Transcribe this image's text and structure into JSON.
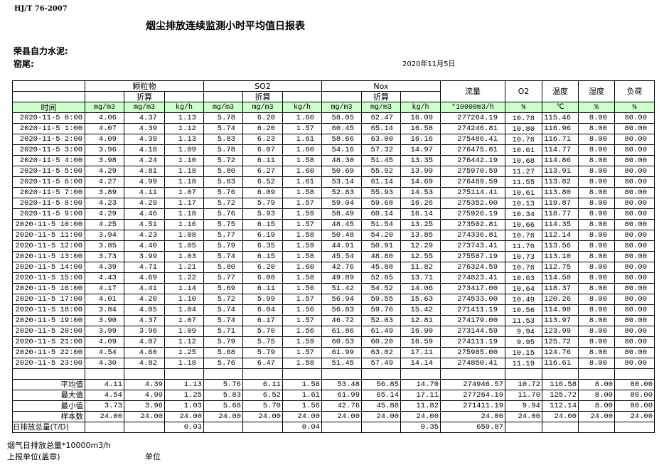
{
  "header": {
    "standard": "HJ/T  76-2007",
    "title": "烟尘排放连续监测小时平均值日报表",
    "company": "荣县自力水泥:",
    "kiln": "窑尾:",
    "date": "2020年11月5日"
  },
  "table": {
    "groups": {
      "particulate": "颗粒物",
      "so2": "SO2",
      "nox": "Nox",
      "flow": "流量",
      "o2": "O2",
      "temp": "温度",
      "humidity": "湿度",
      "load": "负荷"
    },
    "converted": "折算",
    "units": [
      "时间",
      "mg/m3",
      "mg/m3",
      "kg/h",
      "mg/m3",
      "mg/m3",
      "kg/h",
      "mg/m3",
      "mg/m3",
      "kg/h",
      "*10000m3/h",
      "%",
      "℃",
      "%",
      "%"
    ],
    "rows": [
      [
        "2020-11-5 0:00",
        "4.06",
        "4.37",
        "1.13",
        "5.78",
        "6.20",
        "1.60",
        "58.05",
        "62.47",
        "16.09",
        "277264.19",
        "10.78",
        "115.46",
        "8.00",
        "80.00"
      ],
      [
        "2020-11-5 1:00",
        "4.07",
        "4.39",
        "1.12",
        "5.74",
        "6.20",
        "1.57",
        "60.45",
        "65.14",
        "16.58",
        "274246.81",
        "10.80",
        "116.96",
        "8.00",
        "80.00"
      ],
      [
        "2020-11-5 2:00",
        "4.09",
        "4.39",
        "1.13",
        "5.83",
        "6.23",
        "1.61",
        "58.66",
        "63.00",
        "16.16",
        "275486.41",
        "10.76",
        "116.71",
        "8.00",
        "80.00"
      ],
      [
        "2020-11-5 3:00",
        "3.96",
        "4.18",
        "1.09",
        "5.78",
        "6.07",
        "1.60",
        "54.16",
        "57.32",
        "14.97",
        "276475.81",
        "10.61",
        "114.77",
        "8.00",
        "80.00"
      ],
      [
        "2020-11-5 4:00",
        "3.98",
        "4.24",
        "1.10",
        "5.72",
        "6.11",
        "1.58",
        "48.30",
        "51.45",
        "13.35",
        "276442.19",
        "10.68",
        "114.86",
        "8.00",
        "80.00"
      ],
      [
        "2020-11-5 5:00",
        "4.29",
        "4.81",
        "1.18",
        "5.80",
        "6.27",
        "1.60",
        "50.69",
        "55.92",
        "13.99",
        "275970.59",
        "11.27",
        "113.91",
        "8.00",
        "80.00"
      ],
      [
        "2020-11-5 6:00",
        "4.27",
        "4.99",
        "1.18",
        "5.83",
        "6.52",
        "1.61",
        "53.14",
        "61.14",
        "14.69",
        "276489.59",
        "11.55",
        "113.82",
        "8.00",
        "80.00"
      ],
      [
        "2020-11-5 7:00",
        "3.89",
        "4.11",
        "1.07",
        "5.76",
        "6.09",
        "1.58",
        "52.83",
        "55.93",
        "14.53",
        "275114.41",
        "10.61",
        "113.80",
        "8.00",
        "80.00"
      ],
      [
        "2020-11-5 8:00",
        "4.23",
        "4.29",
        "1.17",
        "5.72",
        "5.79",
        "1.57",
        "59.04",
        "59.68",
        "16.26",
        "275352.00",
        "10.13",
        "119.87",
        "8.00",
        "80.00"
      ],
      [
        "2020-11-5 9:00",
        "4.29",
        "4.46",
        "1.18",
        "5.76",
        "5.93",
        "1.59",
        "58.49",
        "60.14",
        "16.14",
        "275926.19",
        "10.34",
        "118.77",
        "8.00",
        "80.00"
      ],
      [
        "2020-11-5 10:00",
        "4.25",
        "4.51",
        "1.16",
        "5.75",
        "6.15",
        "1.57",
        "48.45",
        "51.54",
        "13.25",
        "273502.81",
        "10.66",
        "114.35",
        "8.00",
        "80.00"
      ],
      [
        "2020-11-5 11:00",
        "3.94",
        "4.23",
        "1.08",
        "5.77",
        "6.19",
        "1.58",
        "50.48",
        "54.20",
        "13.85",
        "274336.81",
        "10.76",
        "112.14",
        "8.00",
        "80.00"
      ],
      [
        "2020-11-5 12:00",
        "3.85",
        "4.40",
        "1.05",
        "5.79",
        "6.35",
        "1.59",
        "44.91",
        "50.91",
        "12.29",
        "273743.41",
        "11.70",
        "113.56",
        "8.00",
        "80.00"
      ],
      [
        "2020-11-5 13:00",
        "3.73",
        "3.99",
        "1.03",
        "5.74",
        "6.15",
        "1.58",
        "45.54",
        "48.80",
        "12.55",
        "275587.19",
        "10.73",
        "113.10",
        "8.00",
        "80.00"
      ],
      [
        "2020-11-5 14:00",
        "4.39",
        "4.71",
        "1.21",
        "5.80",
        "6.20",
        "1.60",
        "42.76",
        "45.88",
        "11.82",
        "276324.59",
        "10.76",
        "112.75",
        "8.00",
        "80.00"
      ],
      [
        "2020-11-5 15:00",
        "4.43",
        "4.69",
        "1.22",
        "5.77",
        "6.08",
        "1.58",
        "49.89",
        "52.85",
        "13.71",
        "274823.41",
        "10.63",
        "114.50",
        "8.00",
        "80.00"
      ],
      [
        "2020-11-5 16:00",
        "4.17",
        "4.41",
        "1.14",
        "5.69",
        "6.11",
        "1.56",
        "51.42",
        "54.52",
        "14.06",
        "273417.00",
        "10.64",
        "118.37",
        "8.00",
        "80.00"
      ],
      [
        "2020-11-5 17:00",
        "4.01",
        "4.20",
        "1.10",
        "5.72",
        "5.99",
        "1.57",
        "56.94",
        "59.55",
        "15.63",
        "274533.00",
        "10.49",
        "120.26",
        "8.00",
        "80.00"
      ],
      [
        "2020-11-5 18:00",
        "3.84",
        "4.05",
        "1.04",
        "5.74",
        "6.04",
        "1.56",
        "56.83",
        "59.76",
        "15.42",
        "271411.19",
        "10.56",
        "114.98",
        "8.00",
        "80.00"
      ],
      [
        "2020-11-5 19:00",
        "3.90",
        "4.37",
        "1.07",
        "5.74",
        "6.17",
        "1.57",
        "46.72",
        "52.03",
        "12.81",
        "274179.00",
        "11.53",
        "113.97",
        "8.00",
        "80.00"
      ],
      [
        "2020-11-5 20:00",
        "3.99",
        "3.96",
        "1.09",
        "5.71",
        "5.70",
        "1.56",
        "61.86",
        "61.49",
        "16.90",
        "273144.59",
        "9.94",
        "123.99",
        "8.00",
        "80.00"
      ],
      [
        "2020-11-5 21:00",
        "4.09",
        "4.07",
        "1.12",
        "5.79",
        "5.75",
        "1.59",
        "60.53",
        "60.20",
        "16.59",
        "274111.19",
        "9.95",
        "125.72",
        "8.00",
        "80.00"
      ],
      [
        "2020-11-5 22:00",
        "4.54",
        "4.60",
        "1.25",
        "5.68",
        "5.79",
        "1.57",
        "61.99",
        "63.02",
        "17.11",
        "275985.00",
        "10.15",
        "124.76",
        "8.00",
        "80.00"
      ],
      [
        "2020-11-5 23:00",
        "4.30",
        "4.82",
        "1.18",
        "5.76",
        "6.47",
        "1.58",
        "51.45",
        "57.49",
        "14.14",
        "274850.41",
        "11.19",
        "116.61",
        "8.00",
        "80.00"
      ]
    ],
    "summary": [
      [
        "平均值",
        "4.11",
        "4.39",
        "1.13",
        "5.76",
        "6.11",
        "1.58",
        "53.48",
        "56.85",
        "14.70",
        "274946.57",
        "10.72",
        "116.58",
        "8.00",
        "80.00"
      ],
      [
        "最大值",
        "4.54",
        "4.99",
        "1.25",
        "5.83",
        "6.52",
        "1.61",
        "61.99",
        "65.14",
        "17.11",
        "277264.19",
        "11.70",
        "125.72",
        "8.00",
        "80.00"
      ],
      [
        "最小值",
        "3.73",
        "3.96",
        "1.03",
        "5.68",
        "5.70",
        "1.56",
        "42.76",
        "45.88",
        "11.82",
        "271411.19",
        "9.94",
        "112.14",
        "8.00",
        "80.00"
      ],
      [
        "样本数",
        "24.00",
        "24.00",
        "24.00",
        "24.00",
        "24.00",
        "24.00",
        "24.00",
        "24.00",
        "24.00",
        "24.00",
        "24.00",
        "24.00",
        "24.00",
        "24.00"
      ],
      [
        "日排放总量(T/D)",
        "",
        "",
        "0.03",
        "",
        "",
        "0.04",
        "",
        "",
        "0.35",
        "659.87",
        "",
        "",
        "",
        ""
      ]
    ]
  },
  "footer": {
    "flue_total": "烟气日排放总量*10000m3/h",
    "reporting_unit": "上报单位(盖章)",
    "unit": "单位"
  }
}
